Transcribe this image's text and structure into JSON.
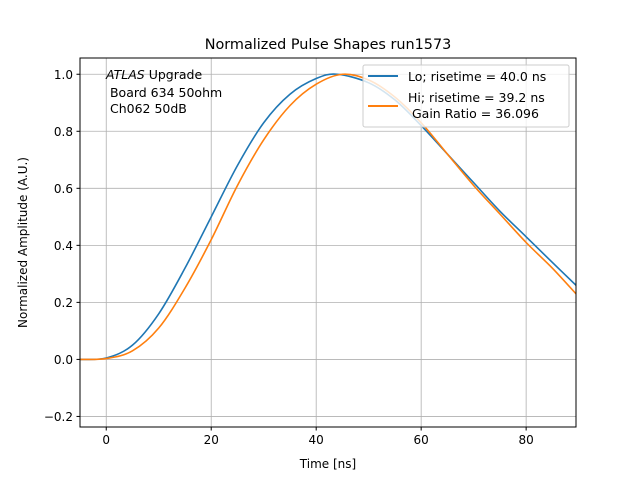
{
  "chart_data": {
    "type": "line",
    "title": "Normalized Pulse Shapes run1573",
    "xlabel": "Time [ns]",
    "ylabel": "Normalized Amplitude (A.U.)",
    "xlim": [
      -5,
      89.5
    ],
    "ylim": [
      -0.237,
      1.057
    ],
    "xticks": [
      0,
      20,
      40,
      60,
      80
    ],
    "xtick_labels": [
      "0",
      "20",
      "40",
      "60",
      "80"
    ],
    "yticks": [
      -0.2,
      0.0,
      0.2,
      0.4,
      0.6,
      0.8,
      1.0
    ],
    "ytick_labels": [
      "−0.2",
      "0.0",
      "0.2",
      "0.4",
      "0.6",
      "0.8",
      "1.0"
    ],
    "grid": true,
    "legend_position": "top-right",
    "annotation": {
      "italic": "ATLAS",
      "line1_rest": " Upgrade",
      "line2": " Board 634 50ohm",
      "line3": " Ch062 50dB"
    },
    "series": [
      {
        "name": "Lo; risetime = 40.0 ns",
        "color": "#1f77b4",
        "x": [
          -5,
          0,
          5,
          10,
          15,
          20,
          25,
          30,
          35,
          40,
          44,
          50,
          55,
          60,
          65,
          70,
          75,
          80,
          85,
          89.5
        ],
        "y": [
          0,
          0.005,
          0.05,
          0.16,
          0.32,
          0.5,
          0.68,
          0.83,
          0.93,
          0.985,
          1.0,
          0.97,
          0.91,
          0.82,
          0.72,
          0.62,
          0.52,
          0.43,
          0.34,
          0.26
        ]
      },
      {
        "name": "Hi; risetime = 39.2 ns\n Gain Ratio = 36.096",
        "name_line1": "Hi; risetime = 39.2 ns",
        "name_line2": " Gain Ratio = 36.096",
        "color": "#ff7f0e",
        "x": [
          -5,
          0,
          5,
          10,
          15,
          20,
          25,
          30,
          35,
          40,
          45,
          50,
          55,
          60,
          65,
          70,
          75,
          80,
          85,
          89.5
        ],
        "y": [
          0,
          0.003,
          0.03,
          0.11,
          0.25,
          0.42,
          0.61,
          0.77,
          0.89,
          0.965,
          1.0,
          0.98,
          0.92,
          0.83,
          0.72,
          0.61,
          0.51,
          0.41,
          0.32,
          0.23
        ]
      }
    ]
  }
}
